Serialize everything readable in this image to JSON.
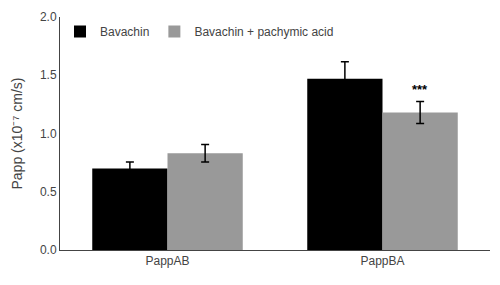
{
  "chart_data": {
    "type": "bar",
    "categories": [
      "PappAB",
      "PappBA"
    ],
    "series": [
      {
        "name": "Bavachin",
        "color": "#000000",
        "values": [
          0.7,
          1.47
        ],
        "errors": [
          0.055,
          0.145
        ]
      },
      {
        "name": "Bavachin + pachymic acid",
        "color": "#999999",
        "values": [
          0.83,
          1.18
        ],
        "errors": [
          0.075,
          0.095
        ]
      }
    ],
    "ylabel": "Papp (x10⁻⁷ cm/s)",
    "ylim": [
      0.0,
      2.0
    ],
    "yticks": [
      {
        "value": 0.0,
        "label": "0.0"
      },
      0.5,
      {
        "value": 1.0,
        "label": "1.0"
      },
      1.5,
      {
        "value": 2.0,
        "label": "2.0"
      }
    ],
    "annotations": [
      {
        "text": "***",
        "category": "PappBA",
        "series": "Bavachin + pachymic acid"
      }
    ],
    "legend": "upper left",
    "grid": false
  }
}
